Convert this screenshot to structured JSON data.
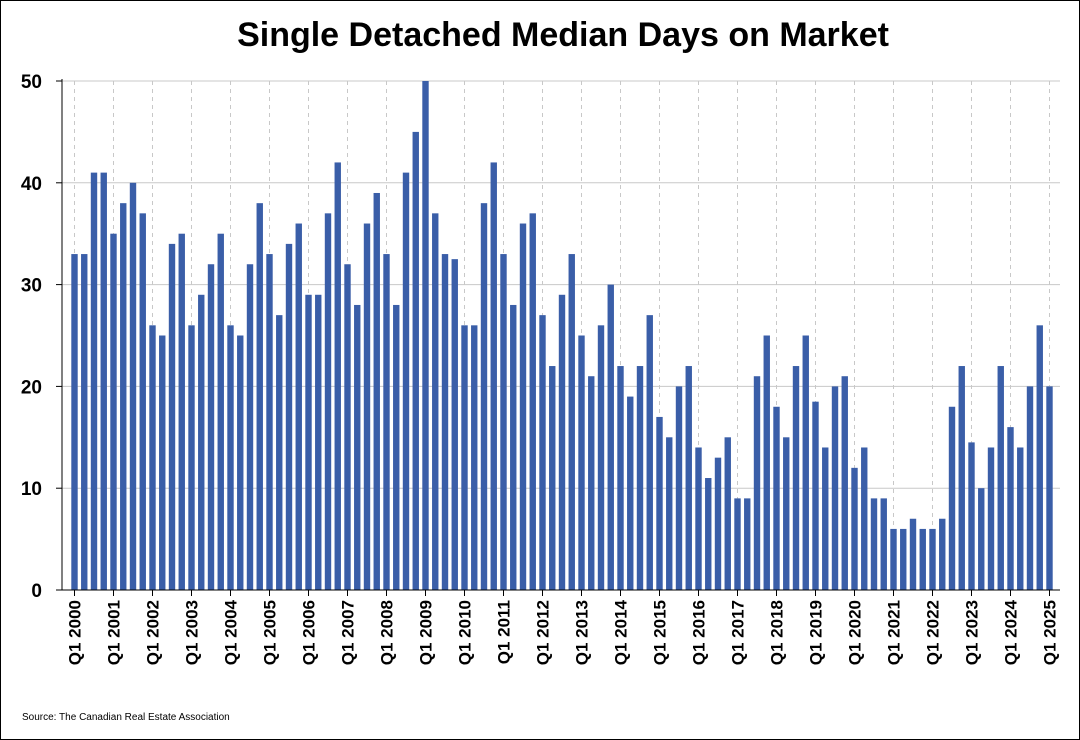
{
  "chart_data": {
    "type": "bar",
    "title": "Single Detached Median Days on Market",
    "xlabel": "",
    "ylabel": "",
    "ylim": [
      0,
      50
    ],
    "yticks": [
      0,
      10,
      20,
      30,
      40,
      50
    ],
    "grid": true,
    "bar_color": "#3a5ea8",
    "tick_labels": [
      "Q1 2000",
      "Q1 2001",
      "Q1 2002",
      "Q1 2003",
      "Q1 2004",
      "Q1 2005",
      "Q1 2006",
      "Q1 2007",
      "Q1 2008",
      "Q1 2009",
      "Q1 2010",
      "Q1 2011",
      "Q1 2012",
      "Q1 2013",
      "Q1 2014",
      "Q1 2015",
      "Q1 2016",
      "Q1 2017",
      "Q1 2018",
      "Q1 2019",
      "Q1 2020",
      "Q1 2021",
      "Q1 2022",
      "Q1 2023",
      "Q1 2024",
      "Q1 2025"
    ],
    "categories": [
      "Q1 2000",
      "Q2 2000",
      "Q3 2000",
      "Q4 2000",
      "Q1 2001",
      "Q2 2001",
      "Q3 2001",
      "Q4 2001",
      "Q1 2002",
      "Q2 2002",
      "Q3 2002",
      "Q4 2002",
      "Q1 2003",
      "Q2 2003",
      "Q3 2003",
      "Q4 2003",
      "Q1 2004",
      "Q2 2004",
      "Q3 2004",
      "Q4 2004",
      "Q1 2005",
      "Q2 2005",
      "Q3 2005",
      "Q4 2005",
      "Q1 2006",
      "Q2 2006",
      "Q3 2006",
      "Q4 2006",
      "Q1 2007",
      "Q2 2007",
      "Q3 2007",
      "Q4 2007",
      "Q1 2008",
      "Q2 2008",
      "Q3 2008",
      "Q4 2008",
      "Q1 2009",
      "Q2 2009",
      "Q3 2009",
      "Q4 2009",
      "Q1 2010",
      "Q2 2010",
      "Q3 2010",
      "Q4 2010",
      "Q1 2011",
      "Q2 2011",
      "Q3 2011",
      "Q4 2011",
      "Q1 2012",
      "Q2 2012",
      "Q3 2012",
      "Q4 2012",
      "Q1 2013",
      "Q2 2013",
      "Q3 2013",
      "Q4 2013",
      "Q1 2014",
      "Q2 2014",
      "Q3 2014",
      "Q4 2014",
      "Q1 2015",
      "Q2 2015",
      "Q3 2015",
      "Q4 2015",
      "Q1 2016",
      "Q2 2016",
      "Q3 2016",
      "Q4 2016",
      "Q1 2017",
      "Q2 2017",
      "Q3 2017",
      "Q4 2017",
      "Q1 2018",
      "Q2 2018",
      "Q3 2018",
      "Q4 2018",
      "Q1 2019",
      "Q2 2019",
      "Q3 2019",
      "Q4 2019",
      "Q1 2020",
      "Q2 2020",
      "Q3 2020",
      "Q4 2020",
      "Q1 2021",
      "Q2 2021",
      "Q3 2021",
      "Q4 2021",
      "Q1 2022",
      "Q2 2022",
      "Q3 2022",
      "Q4 2022",
      "Q1 2023",
      "Q2 2023",
      "Q3 2023",
      "Q4 2023",
      "Q1 2024",
      "Q2 2024",
      "Q3 2024",
      "Q4 2024",
      "Q1 2025"
    ],
    "values": [
      33,
      33,
      41,
      41,
      35,
      38,
      40,
      37,
      26,
      25,
      34,
      35,
      26,
      29,
      32,
      35,
      26,
      25,
      32,
      38,
      33,
      27,
      34,
      36,
      29,
      29,
      37,
      42,
      32,
      28,
      36,
      39,
      33,
      28,
      41,
      45,
      50,
      37,
      33,
      32.5,
      26,
      26,
      38,
      42,
      33,
      28,
      36,
      37,
      27,
      22,
      29,
      33,
      25,
      21,
      26,
      30,
      22,
      19,
      22,
      27,
      17,
      15,
      20,
      22,
      14,
      11,
      13,
      15,
      9,
      9,
      21,
      25,
      18,
      15,
      22,
      25,
      18.5,
      14,
      20,
      21,
      12,
      14,
      9,
      9,
      6,
      6,
      7,
      6,
      6,
      7,
      18,
      22,
      14.5,
      10,
      14,
      22,
      16,
      14,
      20,
      26,
      20
    ]
  },
  "source": "Source: The Canadian Real Estate Association"
}
